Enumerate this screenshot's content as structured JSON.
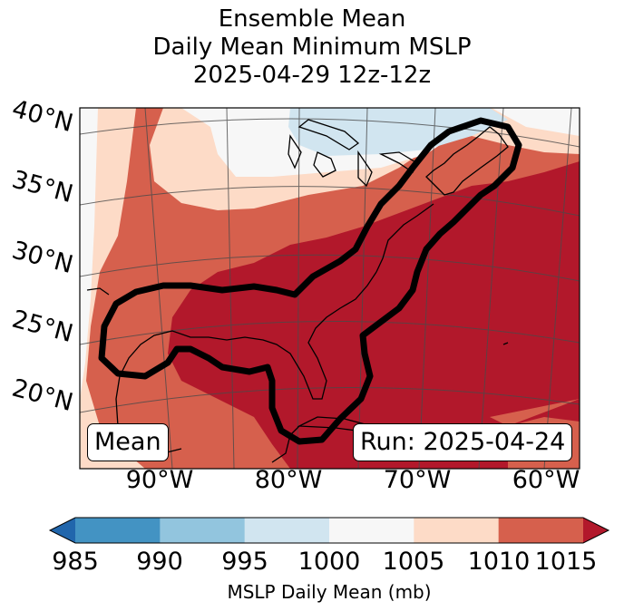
{
  "title": {
    "line1": "Ensemble Mean",
    "line2": "Daily Mean Minimum MSLP",
    "line3": "2025-04-29 12z-12z"
  },
  "map": {
    "lat_labels": [
      "40°N",
      "35°N",
      "30°N",
      "25°N",
      "20°N"
    ],
    "lon_labels": [
      "90°W",
      "80°W",
      "70°W",
      "60°W"
    ],
    "mean_box": "Mean",
    "run_box": "Run: 2025-04-24",
    "fill_colors": {
      "lt_1000": "#d1e5f0",
      "1000_1005": "#f7f7f7",
      "1005_1010": "#fddbc7",
      "1010_1015": "#d6604d",
      "gt_1015": "#b2182b"
    },
    "contour_color": "#000000"
  },
  "colorbar": {
    "ticks": [
      "985",
      "990",
      "995",
      "1000",
      "1005",
      "1010",
      "1015"
    ],
    "colors": [
      "#2166ac",
      "#4393c3",
      "#92c5de",
      "#d1e5f0",
      "#f7f7f7",
      "#fddbc7",
      "#d6604d",
      "#b2182b"
    ],
    "label": "MSLP Daily Mean (mb)"
  }
}
